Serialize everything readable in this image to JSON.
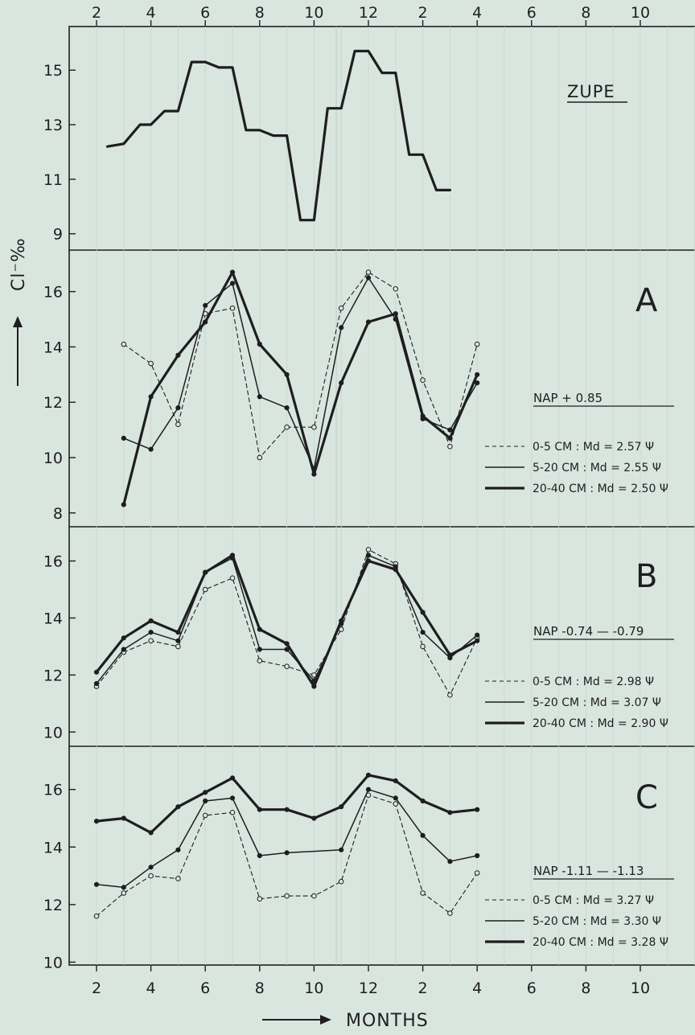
{
  "x_axis_label": "MONTHS",
  "y_axis_label": "Cl⁻‰",
  "colors": {
    "ink": "#1e1e1e",
    "background": "#d9e6e0"
  },
  "x_ticks": [
    "2",
    "4",
    "6",
    "8",
    "10",
    "12",
    "2",
    "4",
    "6",
    "8",
    "10"
  ],
  "chart_data": [
    {
      "type": "line",
      "panel": "ZUPE",
      "title": "ZUPE",
      "x_ticks": [
        "2",
        "4",
        "6",
        "8",
        "10",
        "12",
        "2",
        "4",
        "6",
        "8",
        "10"
      ],
      "ylim": [
        8.4,
        16.6
      ],
      "y_ticks": [
        9,
        11,
        13,
        15
      ],
      "series": [
        {
          "style": "step-heavy",
          "x": [
            2.4,
            3.0,
            3.6,
            4.0,
            4.5,
            5.0,
            5.5,
            6.0,
            6.5,
            7.0,
            7.5,
            8.0,
            8.5,
            9.0,
            9.5,
            10.0,
            10.5,
            11.0,
            11.5,
            12.0,
            12.5,
            13.0,
            13.5,
            14.0,
            14.5,
            15.0
          ],
          "y": [
            12.2,
            12.3,
            13.0,
            13.0,
            13.5,
            13.5,
            15.3,
            15.3,
            15.1,
            15.1,
            12.8,
            12.8,
            12.6,
            12.6,
            9.5,
            9.5,
            13.6,
            13.6,
            15.7,
            15.7,
            14.9,
            14.9,
            11.9,
            11.9,
            10.6,
            10.6
          ]
        }
      ]
    },
    {
      "type": "line",
      "panel": "A",
      "title": "A",
      "annotation": "NAP   + 0.85",
      "x_ticks": [
        "2",
        "4",
        "6",
        "8",
        "10",
        "12",
        "2",
        "4",
        "6",
        "8",
        "10"
      ],
      "ylim": [
        7.5,
        17.5
      ],
      "y_ticks": [
        8,
        10,
        12,
        14,
        16
      ],
      "series": [
        {
          "name": "0-5 CM :  Md = 2.57 Ψ",
          "style": "dashed",
          "x": [
            3,
            4,
            5,
            6,
            7,
            8,
            9,
            10,
            11,
            12,
            13,
            14,
            15,
            16
          ],
          "y": [
            14.1,
            13.4,
            11.2,
            15.2,
            15.4,
            10.0,
            11.1,
            11.1,
            15.4,
            16.7,
            16.1,
            12.8,
            10.4,
            14.1
          ]
        },
        {
          "name": "5-20 CM :  Md = 2.55 Ψ",
          "style": "medium",
          "x": [
            3,
            4,
            5,
            6,
            7,
            8,
            9,
            10,
            11,
            12,
            13,
            14,
            15,
            16
          ],
          "y": [
            10.7,
            10.3,
            11.8,
            15.5,
            16.3,
            12.2,
            11.8,
            9.6,
            14.7,
            16.5,
            15.0,
            11.4,
            11.0,
            12.7
          ]
        },
        {
          "name": "20-40 CM :  Md = 2.50 Ψ",
          "style": "heavy",
          "x": [
            3,
            4,
            5,
            6,
            7,
            8,
            9,
            10,
            11,
            12,
            13,
            14,
            15,
            16
          ],
          "y": [
            8.3,
            12.2,
            13.7,
            14.9,
            16.7,
            14.1,
            13.0,
            9.4,
            12.7,
            14.9,
            15.2,
            11.5,
            10.7,
            13.0
          ]
        }
      ]
    },
    {
      "type": "line",
      "panel": "B",
      "title": "B",
      "annotation": "NAP   -0.74 — -0.79",
      "x_ticks": [
        "2",
        "4",
        "6",
        "8",
        "10",
        "12",
        "2",
        "4",
        "6",
        "8",
        "10"
      ],
      "ylim": [
        9.5,
        17.2
      ],
      "y_ticks": [
        10,
        12,
        14,
        16
      ],
      "series": [
        {
          "name": "0-5 CM :  Md = 2.98 Ψ",
          "style": "dashed",
          "x": [
            2,
            3,
            4,
            5,
            6,
            7,
            8,
            9,
            10,
            11,
            12,
            13,
            14,
            15,
            16
          ],
          "y": [
            11.6,
            12.8,
            13.2,
            13.0,
            15.0,
            15.4,
            12.5,
            12.3,
            12.0,
            13.6,
            16.4,
            15.9,
            13.0,
            11.3,
            13.3
          ]
        },
        {
          "name": "5-20 CM :  Md = 3.07 Ψ",
          "style": "medium",
          "x": [
            2,
            3,
            4,
            5,
            6,
            7,
            8,
            9,
            10,
            11,
            12,
            13,
            14,
            15,
            16
          ],
          "y": [
            11.7,
            12.9,
            13.5,
            13.2,
            15.6,
            16.1,
            12.9,
            12.9,
            11.8,
            13.8,
            16.2,
            15.8,
            13.5,
            12.6,
            13.4
          ]
        },
        {
          "name": "20-40 CM :  Md = 2.90 Ψ",
          "style": "heavy",
          "x": [
            2,
            3,
            4,
            5,
            6,
            7,
            8,
            9,
            10,
            11,
            12,
            13,
            14,
            15,
            16
          ],
          "y": [
            12.1,
            13.3,
            13.9,
            13.5,
            15.6,
            16.2,
            13.6,
            13.1,
            11.6,
            13.9,
            16.0,
            15.7,
            14.2,
            12.7,
            13.2
          ]
        }
      ]
    },
    {
      "type": "line",
      "panel": "C",
      "title": "C",
      "annotation": "NAP   -1.11 — -1.13",
      "x_ticks": [
        "2",
        "4",
        "6",
        "8",
        "10",
        "12",
        "2",
        "4",
        "6",
        "8",
        "10"
      ],
      "ylim": [
        9.9,
        17.5
      ],
      "y_ticks": [
        10,
        12,
        14,
        16
      ],
      "series": [
        {
          "name": "0-5 CM :  Md = 3.27 Ψ",
          "style": "dashed",
          "x": [
            2,
            3,
            4,
            5,
            6,
            7,
            8,
            9,
            10,
            11,
            12,
            13,
            14,
            15,
            16
          ],
          "y": [
            11.6,
            12.4,
            13.0,
            12.9,
            15.1,
            15.2,
            12.2,
            12.3,
            12.3,
            12.8,
            15.8,
            15.5,
            12.4,
            11.7,
            13.1
          ]
        },
        {
          "name": "5-20 CM :  Md = 3.30 Ψ",
          "style": "medium",
          "x": [
            2,
            3,
            4,
            5,
            6,
            7,
            8,
            9,
            10,
            11,
            12,
            13,
            14,
            15,
            16
          ],
          "y": [
            12.7,
            12.6,
            13.3,
            13.9,
            15.6,
            15.7,
            13.7,
            13.8,
            null,
            13.9,
            16.0,
            15.7,
            14.4,
            13.5,
            13.7
          ]
        },
        {
          "name": "20-40 CM :  Md = 3.28 Ψ",
          "style": "heavy",
          "x": [
            2,
            3,
            4,
            5,
            6,
            7,
            8,
            9,
            10,
            11,
            12,
            13,
            14,
            15,
            16
          ],
          "y": [
            14.9,
            15.0,
            14.5,
            15.4,
            15.9,
            16.4,
            15.3,
            15.3,
            15.0,
            15.4,
            16.5,
            16.3,
            15.6,
            15.2,
            15.3
          ]
        }
      ]
    }
  ]
}
